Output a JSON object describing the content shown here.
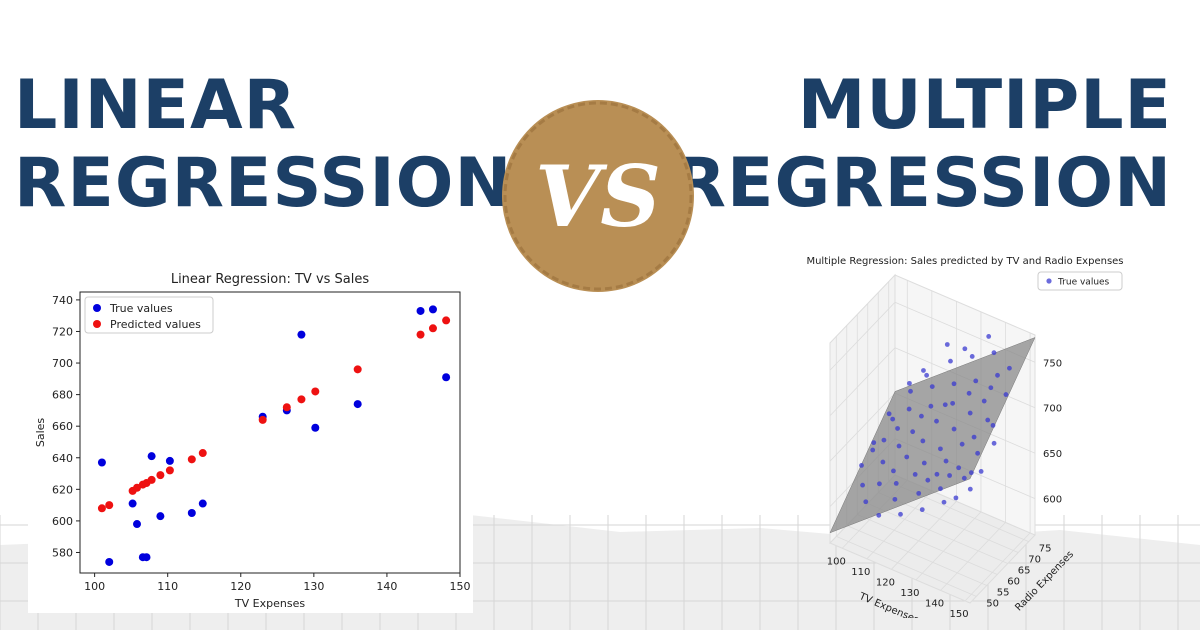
{
  "header": {
    "left_line1": "LINEAR",
    "left_line2": "REGRESSION",
    "vs": "VS",
    "right_line1": "MULTIPLE",
    "right_line2": "REGRESSION"
  },
  "colors": {
    "headline": "#1c3f66",
    "badge": "#b98f55",
    "true_values": "#0000dd",
    "predicted_values": "#ee1111",
    "plane": "#8a8a8a",
    "scatter_3d": "#3a3ad0"
  },
  "chart_data": [
    {
      "type": "scatter",
      "title": "Linear Regression: TV vs Sales",
      "xlabel": "TV Expenses",
      "ylabel": "Sales",
      "xlim": [
        98,
        150
      ],
      "ylim": [
        567,
        745
      ],
      "xticks": [
        100,
        110,
        120,
        130,
        140,
        150
      ],
      "yticks": [
        580,
        600,
        620,
        640,
        660,
        680,
        700,
        720,
        740
      ],
      "grid": false,
      "legend": "top-left",
      "series": [
        {
          "name": "True values",
          "points": [
            [
              101,
              637
            ],
            [
              102,
              574
            ],
            [
              105.2,
              611
            ],
            [
              105.8,
              598
            ],
            [
              106.6,
              577
            ],
            [
              107.1,
              577
            ],
            [
              107.8,
              641
            ],
            [
              109,
              603
            ],
            [
              110.3,
              638
            ],
            [
              113.3,
              605
            ],
            [
              114.8,
              611
            ],
            [
              123,
              666
            ],
            [
              126.3,
              670
            ],
            [
              128.3,
              718
            ],
            [
              130.2,
              659
            ],
            [
              136,
              674
            ],
            [
              144.6,
              733
            ],
            [
              146.3,
              734
            ],
            [
              148.1,
              691
            ]
          ]
        },
        {
          "name": "Predicted values",
          "points": [
            [
              101,
              608
            ],
            [
              102,
              610
            ],
            [
              105.2,
              619
            ],
            [
              105.8,
              621
            ],
            [
              106.6,
              623
            ],
            [
              107.1,
              624
            ],
            [
              107.8,
              626
            ],
            [
              109,
              629
            ],
            [
              110.3,
              632
            ],
            [
              113.3,
              639
            ],
            [
              114.8,
              643
            ],
            [
              123,
              664
            ],
            [
              126.3,
              672
            ],
            [
              128.3,
              677
            ],
            [
              130.2,
              682
            ],
            [
              136,
              696
            ],
            [
              144.6,
              718
            ],
            [
              146.3,
              722
            ],
            [
              148.1,
              727
            ]
          ]
        }
      ]
    },
    {
      "type": "scatter",
      "title": "Multiple Regression: Sales predicted by TV and Radio Expenses",
      "xlabel": "TV Expenses",
      "ylabel": "Radio Expenses",
      "zlabel": "",
      "xlim": [
        95,
        152
      ],
      "ylim": [
        47,
        78
      ],
      "zlim": [
        560,
        780
      ],
      "xticks": [
        100,
        110,
        120,
        130,
        140,
        150
      ],
      "yticks": [
        50,
        55,
        60,
        65,
        70,
        75
      ],
      "zticks": [
        600,
        650,
        700,
        750
      ],
      "legend": "top-right",
      "series": [
        {
          "name": "True values",
          "points": [
            [
              101,
              55,
              633
            ],
            [
              103,
              58,
              645
            ],
            [
              104,
              52,
              622
            ],
            [
              105,
              61,
              651
            ],
            [
              106,
              64,
              668
            ],
            [
              107,
              50,
              612
            ],
            [
              108,
              57,
              640
            ],
            [
              109,
              69,
              690
            ],
            [
              110,
              53,
              628
            ],
            [
              111,
              66,
              680
            ],
            [
              112,
              60,
              655
            ],
            [
              113,
              72,
              705
            ],
            [
              114,
              55,
              642
            ],
            [
              115,
              63,
              667
            ],
            [
              116,
              59,
              650
            ],
            [
              117,
              70,
              702
            ],
            [
              118,
              51,
              625
            ],
            [
              119,
              67,
              690
            ],
            [
              120,
              62,
              665
            ],
            [
              121,
              74,
              725
            ],
            [
              122,
              56,
              645
            ],
            [
              123,
              65,
              683
            ],
            [
              124,
              58,
              655
            ],
            [
              125,
              71,
              712
            ],
            [
              126,
              53,
              636
            ],
            [
              127,
              68,
              700
            ],
            [
              128,
              61,
              668
            ],
            [
              129,
              75,
              737
            ],
            [
              130,
              57,
              652
            ],
            [
              131,
              64,
              686
            ],
            [
              132,
              59,
              664
            ],
            [
              133,
              72,
              722
            ],
            [
              134,
              54,
              648
            ],
            [
              135,
              67,
              701
            ],
            [
              136,
              62,
              680
            ],
            [
              137,
              76,
              748
            ],
            [
              138,
              58,
              666
            ],
            [
              139,
              69,
              714
            ],
            [
              140,
              63,
              690
            ],
            [
              141,
              73,
              735
            ],
            [
              142,
              56,
              664
            ],
            [
              143,
              66,
              705
            ],
            [
              144,
              60,
              684
            ],
            [
              145,
              74,
              745
            ],
            [
              146,
              65,
              705
            ],
            [
              147,
              70,
              728
            ],
            [
              148,
              57,
              676
            ],
            [
              149,
              62,
              696
            ],
            [
              102,
              67,
              662
            ],
            [
              106,
              72,
              688
            ],
            [
              110,
              74,
              702
            ],
            [
              114,
              48,
              610
            ],
            [
              118,
              76,
              735
            ],
            [
              122,
              49,
              618
            ],
            [
              126,
              75,
              742
            ],
            [
              130,
              50,
              630
            ],
            [
              134,
              77,
              760
            ],
            [
              138,
              51,
              645
            ],
            [
              142,
              52,
              652
            ],
            [
              147,
              53,
              665
            ],
            [
              100,
              62,
              640
            ],
            [
              108,
              64,
              660
            ],
            [
              116,
              66,
              678
            ],
            [
              124,
              68,
              695
            ],
            [
              132,
              70,
              712
            ],
            [
              140,
              71,
              725
            ],
            [
              116,
              54,
              633
            ],
            [
              128,
              55,
              648
            ],
            [
              136,
              56,
              660
            ],
            [
              144,
              57,
              670
            ]
          ]
        }
      ]
    }
  ]
}
